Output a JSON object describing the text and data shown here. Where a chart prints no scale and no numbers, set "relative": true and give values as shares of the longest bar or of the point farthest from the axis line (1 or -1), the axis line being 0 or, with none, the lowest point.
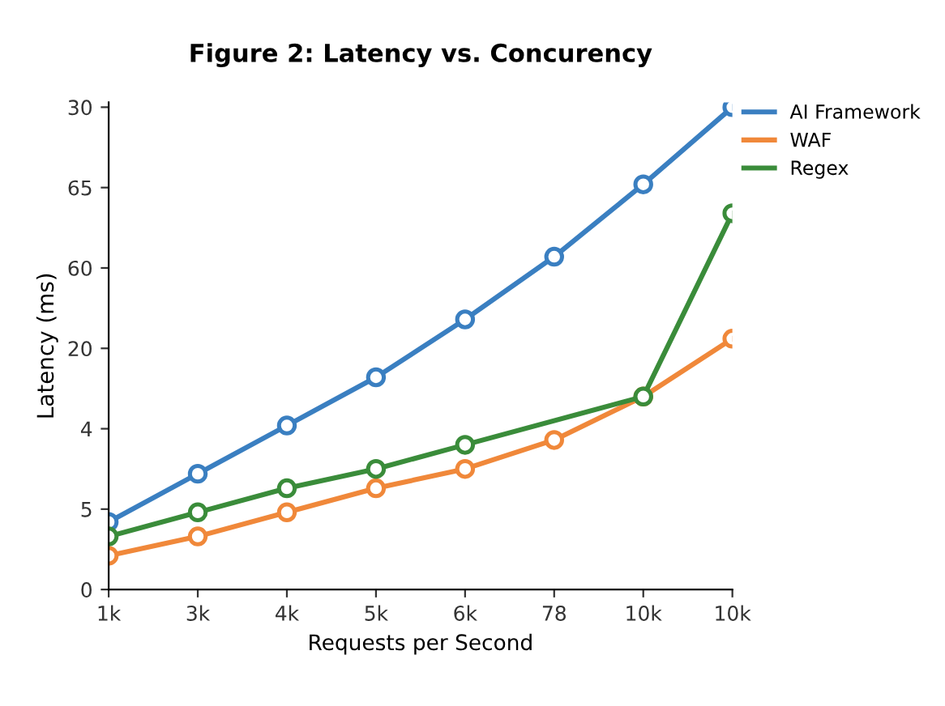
{
  "chart_data": {
    "type": "line",
    "title": "Figure 2: Latency vs. Concurency",
    "xlabel": "Requests per Second",
    "ylabel": "Latency (ms)",
    "categories": [
      "1k",
      "3k",
      "4k",
      "5k",
      "6k",
      "78",
      "10k",
      "10k"
    ],
    "relative": true,
    "annotations": [
      "0",
      "5",
      "4",
      "20",
      "60",
      "65",
      "30"
    ],
    "series": [
      {
        "name": "AI Framework",
        "color": "#3a7fc1",
        "values": [
          0.14,
          0.24,
          0.34,
          0.44,
          0.56,
          0.69,
          0.84,
          1
        ]
      },
      {
        "name": "WAF",
        "color": "#f0883a",
        "values": [
          0.07,
          0.11,
          0.16,
          0.21,
          0.25,
          0.31,
          0.4,
          0.52
        ]
      },
      {
        "name": "Regex",
        "color": "#3a8c3a",
        "values": [
          0.11,
          0.16,
          0.21,
          0.25,
          0.3,
          null,
          0.4,
          0.78
        ]
      }
    ],
    "marker": "circle",
    "line_style": "solid",
    "legend": "top right"
  }
}
